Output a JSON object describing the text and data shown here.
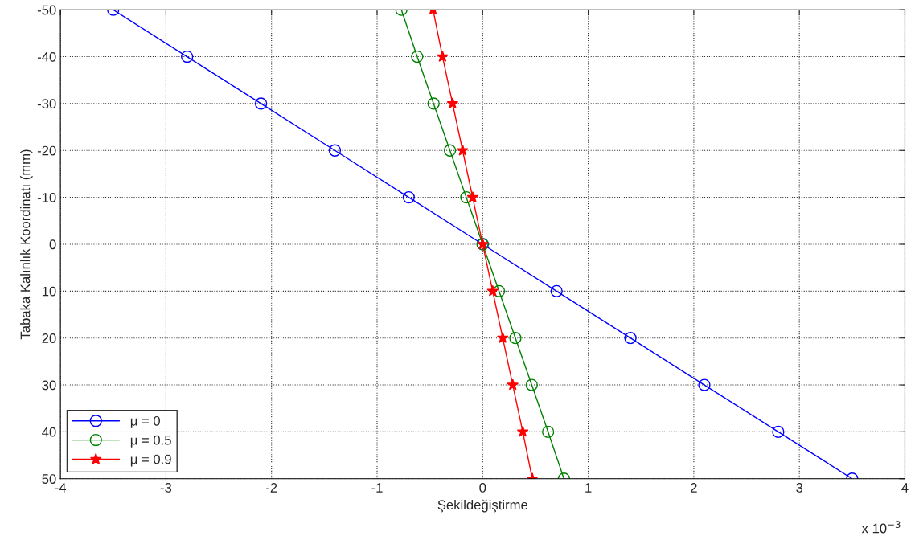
{
  "chart_data": {
    "type": "line",
    "xlabel": "Şekildeğiştirme",
    "ylabel": "Tabaka Kalınlık Koordinatı (mm)",
    "xlim": [
      -4,
      4
    ],
    "xticks": [
      -4,
      -3,
      -2,
      -1,
      0,
      1,
      2,
      3,
      4
    ],
    "ylim": [
      50,
      -50
    ],
    "yticks": [
      -50,
      -40,
      -30,
      -20,
      -10,
      0,
      10,
      20,
      30,
      40,
      50
    ],
    "grid": true,
    "legend": "bottom left",
    "line_style": "solid",
    "annotations": [
      "x 10$^{−3}$"
    ],
    "series": [
      {
        "name": "μ = 0",
        "color": "#0000ff",
        "marker": "circle",
        "x": [
          -3.5,
          -2.8,
          -2.1,
          -1.4,
          -0.7,
          0,
          0.7,
          1.4,
          2.1,
          2.8,
          3.5
        ],
        "values": [
          -50,
          -40,
          -30,
          -20,
          -10,
          0,
          10,
          20,
          30,
          40,
          50
        ]
      },
      {
        "name": "μ = 0.5",
        "color": "#008000",
        "marker": "circle",
        "x": [
          -0.77,
          -0.62,
          -0.465,
          -0.31,
          -0.155,
          0,
          0.155,
          0.31,
          0.465,
          0.62,
          0.77
        ],
        "values": [
          -50,
          -40,
          -30,
          -20,
          -10,
          0,
          10,
          20,
          30,
          40,
          50
        ]
      },
      {
        "name": "μ = 0.9",
        "color": "#ff0000",
        "marker": "star",
        "x": [
          -0.47,
          -0.38,
          -0.285,
          -0.19,
          -0.095,
          0,
          0.095,
          0.19,
          0.285,
          0.38,
          0.47
        ],
        "values": [
          -50,
          -40,
          -30,
          -20,
          -10,
          0,
          10,
          20,
          30,
          40,
          50
        ]
      }
    ]
  }
}
